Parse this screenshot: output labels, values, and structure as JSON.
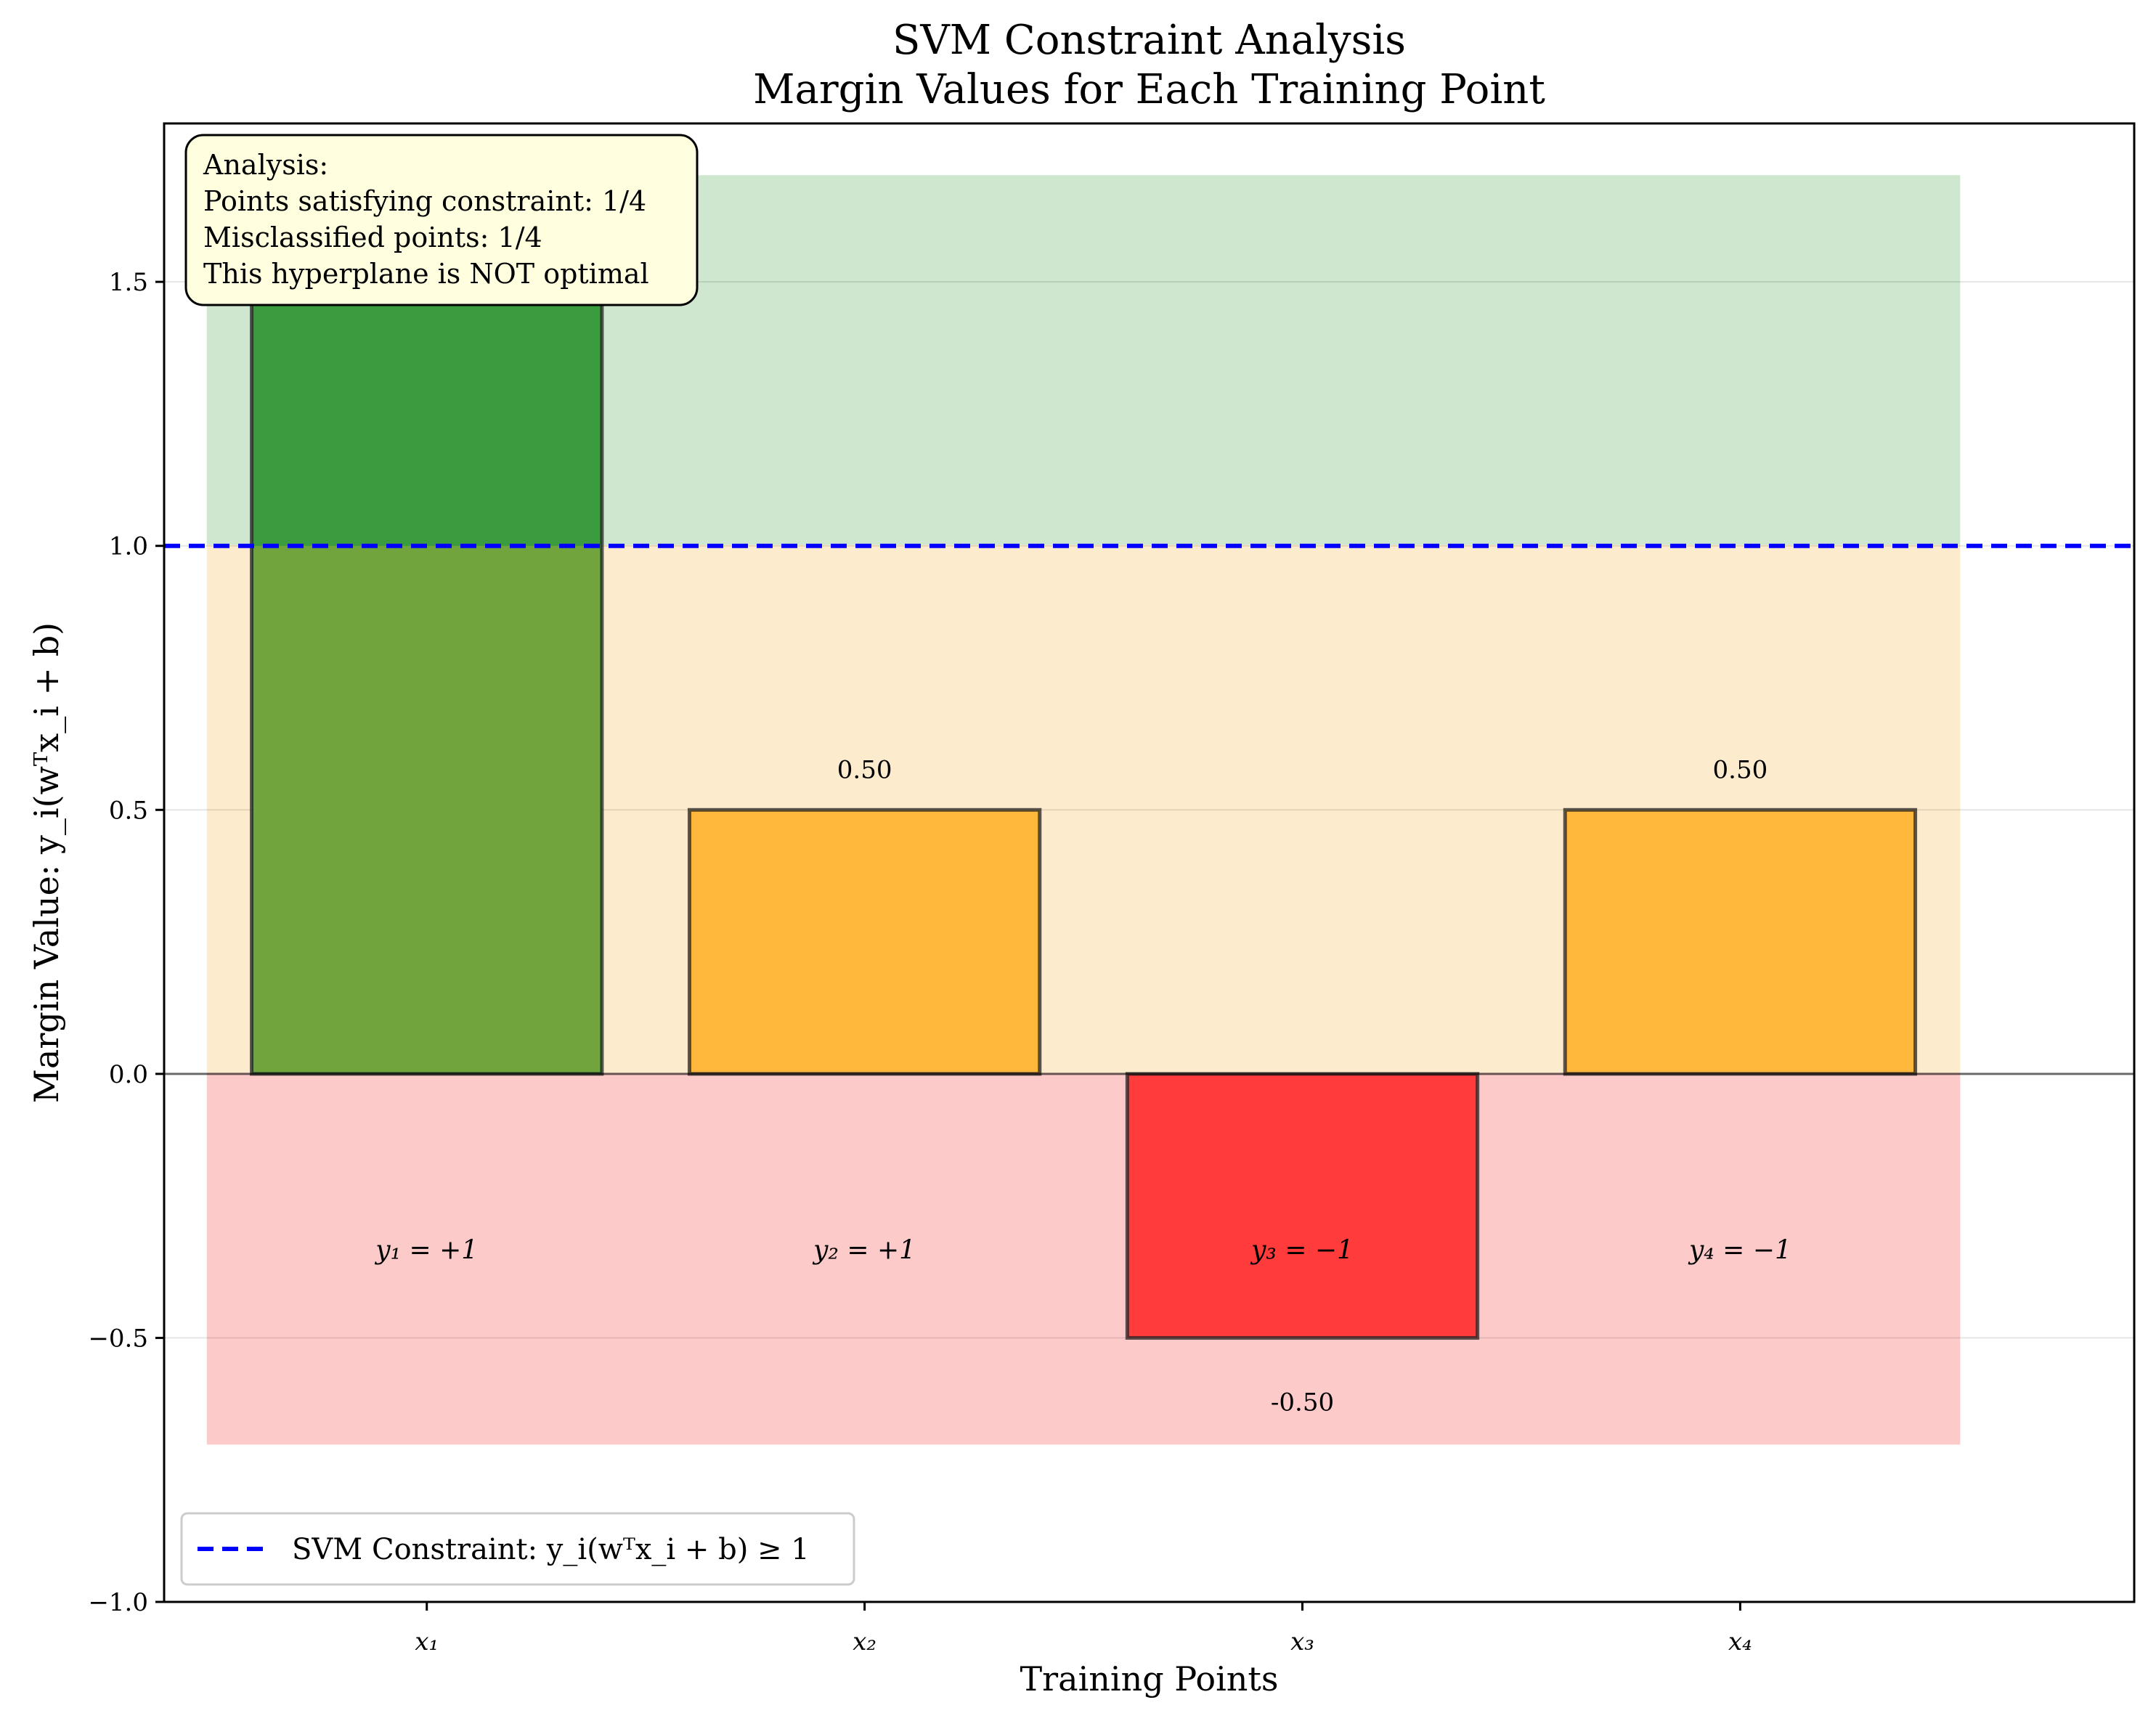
{
  "chart_data": {
    "type": "bar",
    "title": "SVM Constraint Analysis",
    "subtitle": "Margin Values for Each Training Point",
    "xlabel": "Training Points",
    "ylabel": "Margin Value: y_i(wᵀx_i + b)",
    "ylim": [
      -1.0,
      1.8
    ],
    "yticks": [
      -1.0,
      -0.5,
      0.0,
      0.5,
      1.0,
      1.5
    ],
    "ytick_labels": [
      "−1.0",
      "−0.5",
      "0.0",
      "0.5",
      "1.0",
      "1.5"
    ],
    "categories": [
      "x₁",
      "x₂",
      "x₃",
      "x₄"
    ],
    "values": [
      1.5,
      0.5,
      -0.5,
      0.5
    ],
    "value_labels": [
      "",
      "0.50",
      "-0.50",
      "0.50"
    ],
    "class_labels": [
      "y₁ = +1",
      "y₂ = +1",
      "y₃ = −1",
      "y₄ = −1"
    ],
    "bar_colors": [
      "#3b9b3f",
      "#ffb73c",
      "#ff3b3b",
      "#ffb73c"
    ],
    "bar_top_overlay_color": "#3b9b3f",
    "bar_lower_overlay_color": "#71a43c",
    "regions": [
      {
        "from": 1.0,
        "to": 1.7,
        "color": "#cfe6cf"
      },
      {
        "from": 0.0,
        "to": 1.0,
        "color": "#fdebcd"
      },
      {
        "from": -0.7,
        "to": 0.0,
        "color": "#fdcaca"
      }
    ],
    "constraint_line": {
      "y": 1.0,
      "color": "#0000ff",
      "style": "dashed"
    },
    "grid": true,
    "legend": {
      "placement": "lower-left",
      "entries": [
        {
          "label": "SVM Constraint: y_i(wᵀx_i + b) ≥ 1",
          "color": "#0000ff",
          "style": "dashed"
        }
      ]
    },
    "annotation": {
      "placement": "top-left",
      "lines": [
        "Analysis:",
        "Points satisfying constraint: 1/4",
        "Misclassified points: 1/4",
        "This hyperplane is NOT optimal"
      ]
    }
  }
}
